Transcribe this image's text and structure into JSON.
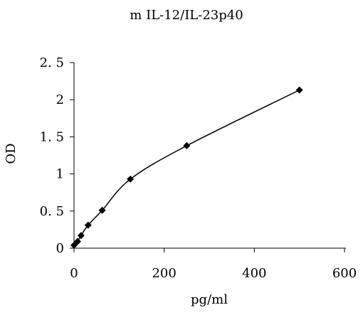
{
  "chart_data": {
    "type": "scatter",
    "title": "m IL-12/IL-23p40",
    "xlabel": "pg/ml",
    "ylabel": "OD",
    "xlim": [
      0,
      600
    ],
    "ylim": [
      0,
      2.5
    ],
    "xticks": [
      "0",
      "200",
      "400",
      "600"
    ],
    "yticks": [
      "0",
      "0. 5",
      "1",
      "1. 5",
      "2",
      "2. 5"
    ],
    "grid": false,
    "marker": "diamond",
    "series": [
      {
        "x": [
          0,
          7.8,
          15.6,
          31.25,
          62.5,
          125,
          250,
          500
        ],
        "y": [
          0.04,
          0.09,
          0.17,
          0.31,
          0.51,
          0.93,
          1.38,
          2.13
        ]
      }
    ],
    "colors": {
      "line": "#000000",
      "marker": "#000000"
    }
  }
}
